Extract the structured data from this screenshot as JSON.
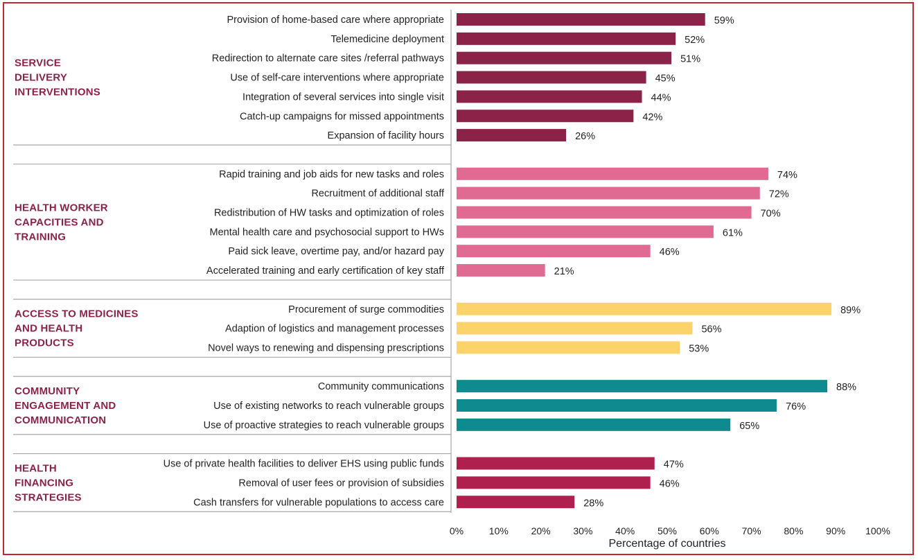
{
  "chart_data": {
    "type": "bar",
    "orientation": "horizontal",
    "xlabel": "Percentage of countries",
    "xlim": [
      0,
      100
    ],
    "ticks": [
      "0%",
      "10%",
      "20%",
      "30%",
      "40%",
      "50%",
      "60%",
      "70%",
      "80%",
      "90%",
      "100%"
    ],
    "groups": [
      {
        "name_lines": [
          "SERVICE",
          "DELIVERY",
          "INTERVENTIONS"
        ],
        "color": "#8b2349",
        "items": [
          {
            "label": "Provision of home-based care where appropriate",
            "value": 59,
            "value_label": "59%"
          },
          {
            "label": "Telemedicine deployment",
            "value": 52,
            "value_label": "52%"
          },
          {
            "label": "Redirection  to alternate care sites /referral pathways",
            "value": 51,
            "value_label": "51%"
          },
          {
            "label": "Use of self-care interventions where appropriate",
            "value": 45,
            "value_label": "45%"
          },
          {
            "label": "Integration of several services into single visit",
            "value": 44,
            "value_label": "44%"
          },
          {
            "label": "Catch-up campaigns for missed appointments",
            "value": 42,
            "value_label": "42%"
          },
          {
            "label": "Expansion of facility hours",
            "value": 26,
            "value_label": "26%"
          }
        ]
      },
      {
        "name_lines": [
          "HEALTH WORKER",
          "CAPACITIES AND",
          "TRAINING"
        ],
        "color": "#e06a92",
        "items": [
          {
            "label": "Rapid training and job aids for new tasks and roles",
            "value": 74,
            "value_label": "74%"
          },
          {
            "label": "Recruitment of additional staff",
            "value": 72,
            "value_label": "72%"
          },
          {
            "label": "Redistribution of HW tasks and optimization of roles",
            "value": 70,
            "value_label": "70%"
          },
          {
            "label": "Mental health care and psychosocial support to HWs",
            "value": 61,
            "value_label": "61%"
          },
          {
            "label": "Paid sick leave, overtime pay, and/or hazard pay",
            "value": 46,
            "value_label": "46%"
          },
          {
            "label": "Accelerated training and early certification of key staff",
            "value": 21,
            "value_label": "21%"
          }
        ]
      },
      {
        "name_lines": [
          "ACCESS TO MEDICINES",
          "AND HEALTH",
          "PRODUCTS"
        ],
        "color": "#fcd36a",
        "items": [
          {
            "label": "Procurement of surge commodities",
            "value": 89,
            "value_label": "89%"
          },
          {
            "label": "Adaption of logistics and management processes",
            "value": 56,
            "value_label": "56%"
          },
          {
            "label": "Novel ways to renewing and dispensing prescriptions",
            "value": 53,
            "value_label": "53%"
          }
        ]
      },
      {
        "name_lines": [
          "COMMUNITY",
          "ENGAGEMENT AND",
          "COMMUNICATION"
        ],
        "color": "#0f8a8f",
        "items": [
          {
            "label": "Community communications",
            "value": 88,
            "value_label": "88%"
          },
          {
            "label": "Use of existing networks to reach vulnerable groups",
            "value": 76,
            "value_label": "76%"
          },
          {
            "label": "Use of proactive strategies to reach vulnerable groups",
            "value": 65,
            "value_label": "65%"
          }
        ]
      },
      {
        "name_lines": [
          "HEALTH",
          "FINANCING",
          "STRATEGIES"
        ],
        "color": "#b0204f",
        "items": [
          {
            "label": "Use of private health facilities to deliver EHS using public funds",
            "value": 47,
            "value_label": "47%"
          },
          {
            "label": "Removal of user fees or provision of subsidies",
            "value": 46,
            "value_label": "46%"
          },
          {
            "label": "Cash transfers for vulnerable populations to access care",
            "value": 28,
            "value_label": "28%"
          }
        ]
      }
    ]
  }
}
